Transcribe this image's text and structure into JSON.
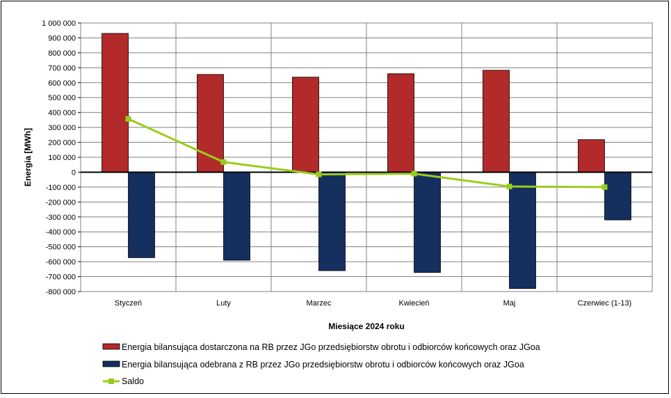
{
  "chart_data": {
    "type": "bar",
    "title": "",
    "xlabel": "Miesiące 2024  roku",
    "ylabel": "Energia [MWh]",
    "ylim": [
      -800000,
      1000000
    ],
    "ytick_step": 100000,
    "ytick_labels": [
      "1 000 000",
      "900 000",
      "800 000",
      "700 000",
      "600 000",
      "500 000",
      "400 000",
      "300 000",
      "200 000",
      "100 000",
      "0",
      "-100 000",
      "-200 000",
      "-300 000",
      "-400 000",
      "-500 000",
      "-600 000",
      "-700 000",
      "-800 000"
    ],
    "categories": [
      "Styczeń",
      "Luty",
      "Marzec",
      "Kwiecień",
      "Maj",
      "Czerwiec (1-13)"
    ],
    "grid": true,
    "legend_position": "bottom",
    "series": [
      {
        "name": "Energia bilansująca dostarczona na RB przez JGo przedsiębiorstw obrotu i odbiorców końcowych oraz JGoa",
        "kind": "bar",
        "color": "#b22a2a",
        "values": [
          930000,
          655000,
          637000,
          660000,
          683000,
          218000
        ]
      },
      {
        "name": "Energia bilansująca odebrana z RB przez JGo przedsiębiorstw obrotu i odbiorców końcowych oraz JGoa",
        "kind": "bar",
        "color": "#15305f",
        "values": [
          -573000,
          -590000,
          -660000,
          -672000,
          -780000,
          -320000
        ]
      },
      {
        "name": "Saldo",
        "kind": "line",
        "color": "#9acd1a",
        "values": [
          357000,
          68000,
          -15000,
          -10000,
          -96000,
          -100000
        ]
      }
    ]
  }
}
